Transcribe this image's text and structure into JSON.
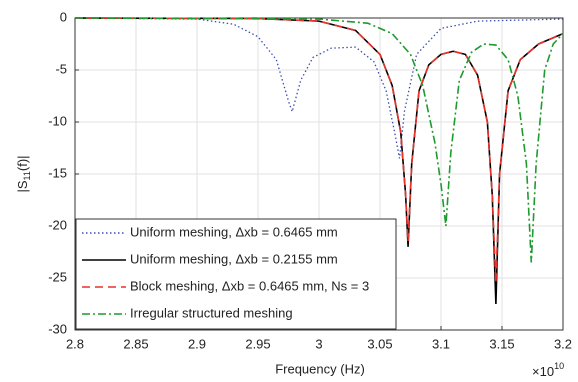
{
  "chart_data": {
    "type": "line",
    "xlabel": "Frequency (Hz)",
    "x_multiplier": {
      "base": "×10",
      "exponent": "10"
    },
    "ylabel": {
      "main": "|S",
      "sub": "11",
      "rest": "(f)|"
    },
    "xlim": [
      2.8,
      3.2
    ],
    "xticks": [
      2.8,
      2.85,
      2.9,
      2.95,
      3,
      3.05,
      3.1,
      3.15,
      3.2
    ],
    "ylim": [
      -30,
      0
    ],
    "yticks": [
      0,
      -5,
      -10,
      -15,
      -20,
      -25,
      -30
    ],
    "grid": true,
    "legend": "lower left",
    "series": [
      {
        "name": "Uniform meshing, Δxb = 0.6465 mm",
        "color": "#3b4fb0",
        "dash": "dotted",
        "x": [
          2.8,
          2.9,
          2.93,
          2.95,
          2.965,
          2.975,
          2.978,
          2.985,
          2.995,
          3.01,
          3.03,
          3.045,
          3.055,
          3.062,
          3.066,
          3.07,
          3.08,
          3.1,
          3.13,
          3.2
        ],
        "values": [
          0,
          -0.1,
          -0.6,
          -1.8,
          -4,
          -8,
          -9,
          -6,
          -3.8,
          -2.9,
          -2.8,
          -4.2,
          -7,
          -11,
          -13.5,
          -9,
          -3.5,
          -1,
          -0.3,
          -0.1
        ]
      },
      {
        "name": "Uniform meshing, Δxb = 0.2155 mm",
        "color": "#000000",
        "dash": "solid",
        "x": [
          2.8,
          2.95,
          3.0,
          3.03,
          3.05,
          3.06,
          3.067,
          3.071,
          3.073,
          3.076,
          3.082,
          3.09,
          3.1,
          3.11,
          3.12,
          3.13,
          3.138,
          3.142,
          3.145,
          3.148,
          3.155,
          3.165,
          3.18,
          3.2
        ],
        "values": [
          0,
          -0.05,
          -0.3,
          -1.2,
          -3.5,
          -6.5,
          -11,
          -17,
          -22,
          -14,
          -7,
          -4.5,
          -3.5,
          -3.2,
          -3.5,
          -5.5,
          -10,
          -17,
          -27.5,
          -15,
          -7,
          -4,
          -2.5,
          -1.5
        ]
      },
      {
        "name": "Block meshing, Δxb = 0.6465 mm, Ns = 3",
        "color": "#e8322a",
        "dash": "dashed",
        "x": [
          2.8,
          2.95,
          3.0,
          3.03,
          3.05,
          3.06,
          3.067,
          3.071,
          3.073,
          3.076,
          3.082,
          3.09,
          3.1,
          3.11,
          3.12,
          3.13,
          3.138,
          3.142,
          3.145,
          3.148,
          3.155,
          3.165,
          3.18,
          3.2
        ],
        "values": [
          0,
          -0.05,
          -0.3,
          -1.2,
          -3.5,
          -6.5,
          -11,
          -17,
          -21.5,
          -14,
          -7,
          -4.5,
          -3.5,
          -3.2,
          -3.5,
          -5.5,
          -10,
          -17,
          -25.5,
          -15,
          -7,
          -4,
          -2.5,
          -1.5
        ]
      },
      {
        "name": "Irregular structured meshing",
        "color": "#1f9a2e",
        "dash": "dashdot",
        "x": [
          2.8,
          3.0,
          3.04,
          3.06,
          3.075,
          3.085,
          3.095,
          3.1,
          3.104,
          3.108,
          3.115,
          3.125,
          3.135,
          3.145,
          3.155,
          3.163,
          3.17,
          3.174,
          3.178,
          3.185,
          3.192,
          3.2
        ],
        "values": [
          0,
          -0.1,
          -0.5,
          -1.5,
          -3.5,
          -6.5,
          -12,
          -16,
          -20,
          -13,
          -6,
          -3.3,
          -2.5,
          -2.6,
          -4,
          -7.5,
          -14,
          -23.5,
          -14,
          -5,
          -2.5,
          -1.5
        ]
      }
    ]
  }
}
